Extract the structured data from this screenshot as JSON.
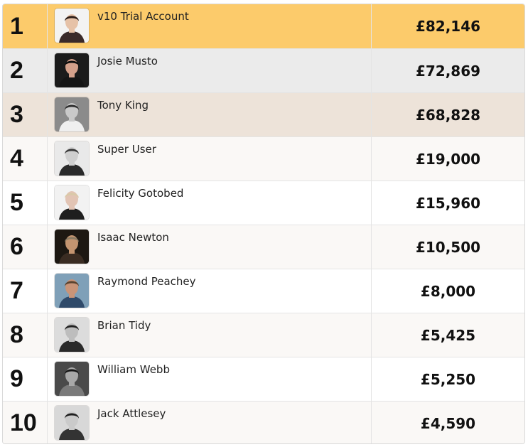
{
  "leaderboard": {
    "rows": [
      {
        "rank": "1",
        "name": "v10 Trial Account",
        "amount": "£82,146",
        "avatar": "woman-dark-hair-avatar",
        "bg": "#f3f3f3",
        "skin": "#e6c2a8",
        "hair": "#2b1d18",
        "clothes": "#3a2a2a"
      },
      {
        "rank": "2",
        "name": "Josie Musto",
        "amount": "£72,869",
        "avatar": "woman-black-hair-avatar",
        "bg": "#1b1b1b",
        "skin": "#d4a08a",
        "hair": "#0c0c0c",
        "clothes": "#151515"
      },
      {
        "rank": "3",
        "name": "Tony King",
        "amount": "£68,828",
        "avatar": "footballer-avatar",
        "bg": "#8b8b8b",
        "skin": "#c9c9c9",
        "hair": "#2e2e2e",
        "clothes": "#efefef"
      },
      {
        "rank": "4",
        "name": "Super User",
        "amount": "£19,000",
        "avatar": "man-mustache-avatar",
        "bg": "#e9e9e9",
        "skin": "#cfcfcf",
        "hair": "#3a3a3a",
        "clothes": "#2a2a2a"
      },
      {
        "rank": "5",
        "name": "Felicity Gotobed",
        "amount": "£15,960",
        "avatar": "woman-blonde-avatar",
        "bg": "#f2f2f2",
        "skin": "#e2c4b4",
        "hair": "#d9c9a8",
        "clothes": "#1e1e1e"
      },
      {
        "rank": "6",
        "name": "Isaac Newton",
        "amount": "£10,500",
        "avatar": "man-wig-portrait-avatar",
        "bg": "#1d1812",
        "skin": "#c49570",
        "hair": "#8a7a62",
        "clothes": "#3a2c22"
      },
      {
        "rank": "7",
        "name": "Raymond Peachey",
        "amount": "£8,000",
        "avatar": "man-with-dog-avatar",
        "bg": "#7fa0b8",
        "skin": "#c99478",
        "hair": "#5a4330",
        "clothes": "#2f4a6a"
      },
      {
        "rank": "8",
        "name": "Brian Tidy",
        "amount": "£5,425",
        "avatar": "man-bw-avatar",
        "bg": "#dcdcdc",
        "skin": "#bdbdbd",
        "hair": "#222222",
        "clothes": "#2a2a2a"
      },
      {
        "rank": "9",
        "name": "William Webb",
        "amount": "£5,250",
        "avatar": "man-cap-avatar",
        "bg": "#4a4a4a",
        "skin": "#a8a8a8",
        "hair": "#151515",
        "clothes": "#7a7a7a"
      },
      {
        "rank": "10",
        "name": "Jack Attlesey",
        "amount": "£4,590",
        "avatar": "man-vintage-avatar",
        "bg": "#d8d8d8",
        "skin": "#cacaca",
        "hair": "#1f1f1f",
        "clothes": "#333333"
      }
    ]
  },
  "colors": {
    "first_place": "#fccb6b",
    "second_place": "#ebebeb",
    "third_place": "#ede3d9",
    "border": "#e4e4e4"
  }
}
